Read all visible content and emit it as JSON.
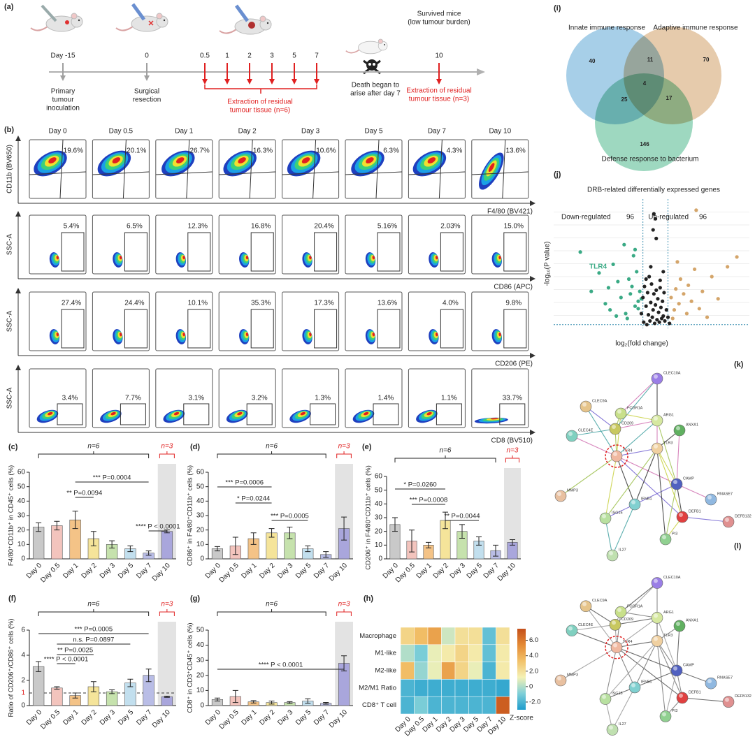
{
  "timeline": {
    "label": "(a)",
    "days": [
      "Day -15",
      "0",
      "0.5",
      "1",
      "2",
      "3",
      "5",
      "7",
      "10"
    ],
    "notes": [
      [
        "Primary",
        "tumour",
        "inoculation"
      ],
      [
        "Surgical",
        "resection"
      ],
      [
        "Extraction of residual",
        "tumour tissue (n=6)"
      ],
      [
        "Death began to",
        "arise after day 7"
      ],
      [
        "Survived mice",
        "(low tumour burden)"
      ],
      [
        "Extraction of residual",
        "tumour tissue (n=3)"
      ]
    ]
  },
  "flow": {
    "label": "(b)",
    "days": [
      "Day 0",
      "Day 0.5",
      "Day 1",
      "Day 2",
      "Day 3",
      "Day 5",
      "Day 7",
      "Day 10"
    ],
    "rows": [
      {
        "y_label": "CD11b (BV650)",
        "x_label": "F4/80 (BV421)",
        "percents": [
          "19.6%",
          "20.1%",
          "26.7%",
          "16.3%",
          "10.6%",
          "6.3%",
          "4.3%",
          "13.6%"
        ]
      },
      {
        "y_label": "SSC-A",
        "x_label": "CD86 (APC)",
        "percents": [
          "5.4%",
          "6.5%",
          "12.3%",
          "16.8%",
          "20.4%",
          "5.16%",
          "2.03%",
          "15.0%"
        ]
      },
      {
        "y_label": "SSC-A",
        "x_label": "CD206 (PE)",
        "percents": [
          "27.4%",
          "24.4%",
          "10.1%",
          "35.3%",
          "17.3%",
          "13.6%",
          "4.0%",
          "9.8%"
        ]
      },
      {
        "y_label": "SSC-A",
        "x_label": "CD8 (BV510)",
        "percents": [
          "3.4%",
          "7.7%",
          "3.1%",
          "3.2%",
          "1.3%",
          "1.4%",
          "1.1%",
          "33.7%"
        ]
      }
    ]
  },
  "chart_data": [
    {
      "type": "bar",
      "label": "(c)",
      "y_label": "F4/80⁺CD11b⁺ in CD45⁺ cells (%)",
      "categories": [
        "Day 0",
        "Day 0.5",
        "Day 1",
        "Day 2",
        "Day 3",
        "Day 5",
        "Day 7",
        "Day 10"
      ],
      "values": [
        22,
        23,
        27,
        14,
        10,
        7,
        4,
        19
      ],
      "errors": [
        3,
        3,
        6,
        5,
        2.5,
        2,
        1.5,
        1
      ],
      "colors": [
        "#c9c9c9",
        "#f3c4bd",
        "#f4c387",
        "#f5e49a",
        "#c6e2ad",
        "#c2dfee",
        "#b9bde6",
        "#a9a6dc"
      ],
      "ylim": [
        0,
        60
      ],
      "yticks": [
        0,
        10,
        20,
        30,
        40,
        50,
        60
      ],
      "group_labels": [
        "n=6",
        "n=3"
      ],
      "annotations": [
        "*** P=0.0004",
        "** P=0.0094",
        "**** P < 0.0001"
      ]
    },
    {
      "type": "bar",
      "label": "(d)",
      "y_label": "CD86⁺ in F4/80⁺CD11b⁺ cells (%)",
      "categories": [
        "Day 0",
        "Day 0.5",
        "Day 1",
        "Day 2",
        "Day 3",
        "Day 5",
        "Day 7",
        "Day 10"
      ],
      "values": [
        7,
        9,
        14,
        18,
        18,
        7,
        3,
        21
      ],
      "errors": [
        1.5,
        6,
        4,
        3,
        4,
        2,
        2,
        8
      ],
      "colors": [
        "#c9c9c9",
        "#f3c4bd",
        "#f4c387",
        "#f5e49a",
        "#c6e2ad",
        "#c2dfee",
        "#b9bde6",
        "#a9a6dc"
      ],
      "ylim": [
        0,
        60
      ],
      "yticks": [
        0,
        10,
        20,
        30,
        40,
        50,
        60
      ],
      "group_labels": [
        "n=6",
        "n=3"
      ],
      "annotations": [
        "*** P=0.0006",
        "* P=0.0244",
        "*** P=0.0005"
      ]
    },
    {
      "type": "bar",
      "label": "(e)",
      "y_label": "CD206⁺ in F4/80⁺CD11b⁺ cells (%)",
      "categories": [
        "Day 0",
        "Day 0.5",
        "Day 1",
        "Day 2",
        "Day 3",
        "Day 5",
        "Day 7",
        "Day 10"
      ],
      "values": [
        25,
        13,
        10,
        28,
        20,
        13,
        6,
        12
      ],
      "errors": [
        5,
        8,
        2,
        6,
        5,
        3,
        4,
        2
      ],
      "colors": [
        "#c9c9c9",
        "#f3c4bd",
        "#f4c387",
        "#f5e49a",
        "#c6e2ad",
        "#c2dfee",
        "#b9bde6",
        "#a9a6dc"
      ],
      "ylim": [
        0,
        60
      ],
      "yticks": [
        0,
        10,
        20,
        30,
        40,
        50,
        60
      ],
      "group_labels": [
        "n=6",
        "n=3"
      ],
      "annotations": [
        "* P=0.0260",
        "*** P=0.0008",
        "** P=0.0044"
      ]
    },
    {
      "type": "bar",
      "label": "(f)",
      "y_label": "Ratio of CD206⁺/CD86⁺ cells (%)",
      "categories": [
        "Day 0",
        "Day 0.5",
        "Day 1",
        "Day 2",
        "Day 3",
        "Day 5",
        "Day 7",
        "Day 10"
      ],
      "values": [
        3.1,
        1.4,
        0.8,
        1.5,
        1.1,
        1.8,
        2.4,
        0.7
      ],
      "errors": [
        0.4,
        0.1,
        0.2,
        0.4,
        0.15,
        0.3,
        0.5,
        0.05
      ],
      "colors": [
        "#c9c9c9",
        "#f3c4bd",
        "#f4c387",
        "#f5e49a",
        "#c6e2ad",
        "#c2dfee",
        "#b9bde6",
        "#a9a6dc"
      ],
      "ylim": [
        0,
        6
      ],
      "yticks": [
        0,
        2,
        4,
        6
      ],
      "ref_line": 1,
      "group_labels": [
        "n=6",
        "n=3"
      ],
      "annotations": [
        "*** P=0.0005",
        "n.s. P=0.0897",
        "** P=0.0025",
        "**** P < 0.0001"
      ]
    },
    {
      "type": "bar",
      "label": "(g)",
      "y_label": "CD8⁺ in CD3⁺CD45⁺ cells (%)",
      "categories": [
        "Day 0",
        "Day 0.5",
        "Day 1",
        "Day 2",
        "Day 3",
        "Day 5",
        "Day 7",
        "Day 10"
      ],
      "values": [
        4,
        6,
        2.5,
        2,
        2,
        3,
        1.5,
        28
      ],
      "errors": [
        1,
        4,
        0.8,
        1,
        0.6,
        1.5,
        0.6,
        5
      ],
      "colors": [
        "#c9c9c9",
        "#f3c4bd",
        "#f4c387",
        "#f5e49a",
        "#c6e2ad",
        "#c2dfee",
        "#b9bde6",
        "#a9a6dc"
      ],
      "ylim": [
        0,
        50
      ],
      "yticks": [
        0,
        10,
        20,
        30,
        40,
        50
      ],
      "group_labels": [
        "n=6",
        "n=3"
      ],
      "annotations": [
        "**** P < 0.0001"
      ]
    },
    {
      "type": "heatmap",
      "label": "(h)",
      "rows": [
        "Macrophage",
        "M1-like",
        "M2-like",
        "M2/M1 Ratio",
        "CD8⁺ T cell"
      ],
      "columns": [
        "Day 0",
        "Day 0.5",
        "Day 1",
        "Day 2",
        "Day 3",
        "Day 5",
        "Day 7",
        "Day 10"
      ],
      "values": [
        [
          2.5,
          3.5,
          4.5,
          0.5,
          2,
          2,
          -1.5,
          2
        ],
        [
          0,
          -1,
          1,
          1.5,
          2.5,
          1.5,
          -1.5,
          1.5
        ],
        [
          3.5,
          -0.5,
          1,
          4.5,
          2.5,
          1,
          -2,
          1.5
        ],
        [
          -2,
          -2.3,
          -2.3,
          -2.3,
          -2.3,
          -2.3,
          -2.3,
          -2.5
        ],
        [
          -2,
          -1,
          -2,
          -2,
          -2,
          -2,
          -2,
          7
        ]
      ],
      "zlim": [
        -3,
        7.5
      ],
      "zticks": [
        {
          "value": -2,
          "label": "-2.0"
        },
        0,
        {
          "value": 2,
          "label": "2.0"
        },
        {
          "value": 4,
          "label": "4.0"
        },
        {
          "value": 6,
          "label": "6.0"
        }
      ],
      "colors": [
        "#1e9ccc",
        "#7fcfd8",
        "#f4f1b5",
        "#f2c26a",
        "#e48a35",
        "#c4501b"
      ],
      "colorbar_label": "Z-score"
    },
    {
      "type": "venn",
      "label": "(i)",
      "sets": [
        "Innate immune response",
        "Adaptive immune response",
        "Defense response to bacterium"
      ],
      "colors": [
        "#5fa8d6",
        "#d2a068",
        "#4fb88c"
      ],
      "values": [
        40,
        11,
        70,
        4,
        25,
        17,
        146
      ]
    },
    {
      "type": "scatter",
      "label": "(j)",
      "title": "DRB-related differentially expressed genes",
      "x_label": "log₂(fold change)",
      "y_label": "-log₁₀(P value)",
      "xlim": [
        -6.5,
        6
      ],
      "ylim": [
        0,
        10.5
      ],
      "thresholds": {
        "x": [
          -0.8,
          0.8
        ],
        "y": 0.3
      },
      "annotation": "TLR4",
      "series": [
        {
          "name": "Down-regulated",
          "count": 96,
          "color": "#3aaa85",
          "x": [
            -4.8,
            -4.1,
            -3.6,
            -3.2,
            -2.9,
            -2.7,
            -2.4,
            -2.2,
            -2.0,
            -1.9,
            -1.7,
            -1.6,
            -1.5,
            -1.4,
            -1.3,
            -1.2,
            -1.1,
            -1.0,
            -2.5,
            -3.0,
            -1.8,
            -1.3,
            -1.1,
            -0.9
          ],
          "y": [
            6.2,
            3.0,
            4.5,
            2.0,
            1.5,
            5.2,
            3.8,
            2.5,
            6.8,
            1.2,
            4.0,
            2.8,
            3.4,
            5.9,
            1.8,
            4.6,
            2.2,
            3.0,
            1.0,
            3.3,
            0.8,
            6.4,
            1.6,
            2.4
          ]
        },
        {
          "name": "Up-regulated",
          "count": 96,
          "color": "#d4a56a",
          "x": [
            1.0,
            1.2,
            1.3,
            1.5,
            1.6,
            1.8,
            2.0,
            2.1,
            2.3,
            2.5,
            2.8,
            3.0,
            3.3,
            3.6,
            4.0,
            4.6,
            5.2,
            1.1,
            1.4,
            2.6
          ],
          "y": [
            2.5,
            1.5,
            3.2,
            2.0,
            4.0,
            2.8,
            1.2,
            3.5,
            2.2,
            4.8,
            1.6,
            3.0,
            0.9,
            4.2,
            2.4,
            5.0,
            5.8,
            0.8,
            5.4,
            9.6
          ]
        },
        {
          "color": "#222222",
          "x": [
            -0.9,
            -0.8,
            -0.75,
            -0.7,
            -0.6,
            -0.55,
            -0.5,
            -0.45,
            -0.4,
            -0.35,
            -0.3,
            -0.25,
            -0.2,
            -0.15,
            -0.1,
            -0.05,
            0,
            0.05,
            0.1,
            0.15,
            0.2,
            0.25,
            0.3,
            0.35,
            0.4,
            0.45,
            0.5,
            0.55,
            0.6,
            0.7,
            0.8,
            0.9,
            -0.1,
            0,
            -0.15,
            0.05,
            -0.6,
            0.3,
            -0.3,
            0.5
          ],
          "y": [
            1.2,
            2.5,
            0.5,
            3.4,
            1.8,
            0.3,
            2.9,
            1.1,
            4.2,
            0.6,
            2.1,
            3.6,
            0.9,
            1.5,
            2.8,
            0.4,
            1.9,
            3.1,
            0.7,
            2.4,
            1.3,
            0.5,
            3.3,
            1.7,
            0.8,
            2.2,
            1.0,
            2.9,
            0.6,
            1.5,
            0.9,
            0.4,
            9.3,
            8.9,
            8.0,
            7.3,
            4.0,
            3.9,
            5.0,
            4.6
          ]
        }
      ]
    },
    {
      "type": "network",
      "label": "(k)",
      "highlight": "TLR4",
      "nodes": [
        "CLEC10A",
        "CLEC9A",
        "FCGR1A",
        "ARG1",
        "CD209",
        "ANXA1",
        "CLEC4E",
        "TLR4",
        "TLR3",
        "MMP3",
        "CAMP",
        "RNASE7",
        "IFNB1",
        "DEFB1",
        "DEFB132",
        "ISG15",
        "PI3",
        "IL27"
      ],
      "node_colors": [
        "#9a7ee6",
        "#e6c48a",
        "#c8e08a",
        "#d6e8a0",
        "#c8c860",
        "#60b060",
        "#80d0c0",
        "#f0b8a0",
        "#f0d0a0",
        "#e8c0a0",
        "#5060c0",
        "#90b8e0",
        "#80d0d0",
        "#e04040",
        "#e09090",
        "#b8e0a0",
        "#90d090",
        "#c0e0b0"
      ],
      "edges": [
        [
          7,
          6
        ],
        [
          7,
          4
        ],
        [
          7,
          2
        ],
        [
          7,
          8
        ],
        [
          7,
          3
        ],
        [
          7,
          12
        ],
        [
          7,
          10
        ],
        [
          7,
          9
        ],
        [
          7,
          15
        ],
        [
          7,
          13
        ],
        [
          7,
          1
        ],
        [
          8,
          12
        ],
        [
          8,
          3
        ],
        [
          8,
          15
        ],
        [
          8,
          13
        ],
        [
          12,
          15
        ],
        [
          12,
          17
        ],
        [
          10,
          13
        ],
        [
          10,
          11
        ],
        [
          10,
          16
        ],
        [
          13,
          16
        ],
        [
          13,
          14
        ],
        [
          0,
          4
        ],
        [
          0,
          3
        ],
        [
          0,
          2
        ],
        [
          2,
          4
        ],
        [
          2,
          3
        ],
        [
          1,
          4
        ],
        [
          6,
          4
        ],
        [
          5,
          8
        ],
        [
          5,
          10
        ],
        [
          3,
          10
        ],
        [
          8,
          10
        ],
        [
          12,
          10
        ],
        [
          15,
          17
        ],
        [
          16,
          8
        ],
        [
          4,
          3
        ]
      ],
      "edge_colors": [
        "#d070b0",
        "#9cc04c",
        "#c8d040",
        "#7060d0",
        "#40a0a0",
        "#333333"
      ]
    },
    {
      "type": "network",
      "label": "(l)",
      "highlight": "TLR4",
      "nodes": [
        "CLEC10A",
        "CLEC9A",
        "FCGR1A",
        "ARG1",
        "CD209",
        "ANXA1",
        "CLEC4E",
        "TLR4",
        "TLR3",
        "MMP3",
        "CAMP",
        "RNASE7",
        "IFNB1",
        "DEFB1",
        "DEFB132",
        "ISG15",
        "PI3",
        "IL27"
      ],
      "node_colors": [
        "#9a7ee6",
        "#e6c48a",
        "#c8e08a",
        "#d6e8a0",
        "#c8c860",
        "#60b060",
        "#80d0c0",
        "#f0b8a0",
        "#f0d0a0",
        "#e8c0a0",
        "#5060c0",
        "#90b8e0",
        "#80d0d0",
        "#e04040",
        "#e09090",
        "#b8e0a0",
        "#90d090",
        "#c0e0b0"
      ],
      "edges": [
        [
          7,
          6
        ],
        [
          7,
          4
        ],
        [
          7,
          2
        ],
        [
          7,
          8
        ],
        [
          7,
          3
        ],
        [
          7,
          12
        ],
        [
          7,
          10
        ],
        [
          7,
          9
        ],
        [
          7,
          15
        ],
        [
          7,
          13
        ],
        [
          7,
          1
        ],
        [
          8,
          12
        ],
        [
          8,
          3
        ],
        [
          8,
          15
        ],
        [
          8,
          13
        ],
        [
          12,
          15
        ],
        [
          12,
          17
        ],
        [
          10,
          13
        ],
        [
          10,
          11
        ],
        [
          10,
          16
        ],
        [
          13,
          16
        ],
        [
          13,
          14
        ],
        [
          0,
          4
        ],
        [
          0,
          3
        ],
        [
          0,
          2
        ],
        [
          2,
          4
        ],
        [
          2,
          3
        ],
        [
          1,
          4
        ],
        [
          6,
          4
        ],
        [
          5,
          8
        ],
        [
          5,
          10
        ],
        [
          3,
          10
        ],
        [
          8,
          10
        ],
        [
          12,
          10
        ],
        [
          15,
          17
        ],
        [
          16,
          8
        ],
        [
          4,
          3
        ]
      ],
      "edge_colors": [
        "#555555",
        "#999999",
        "#777777"
      ]
    }
  ]
}
